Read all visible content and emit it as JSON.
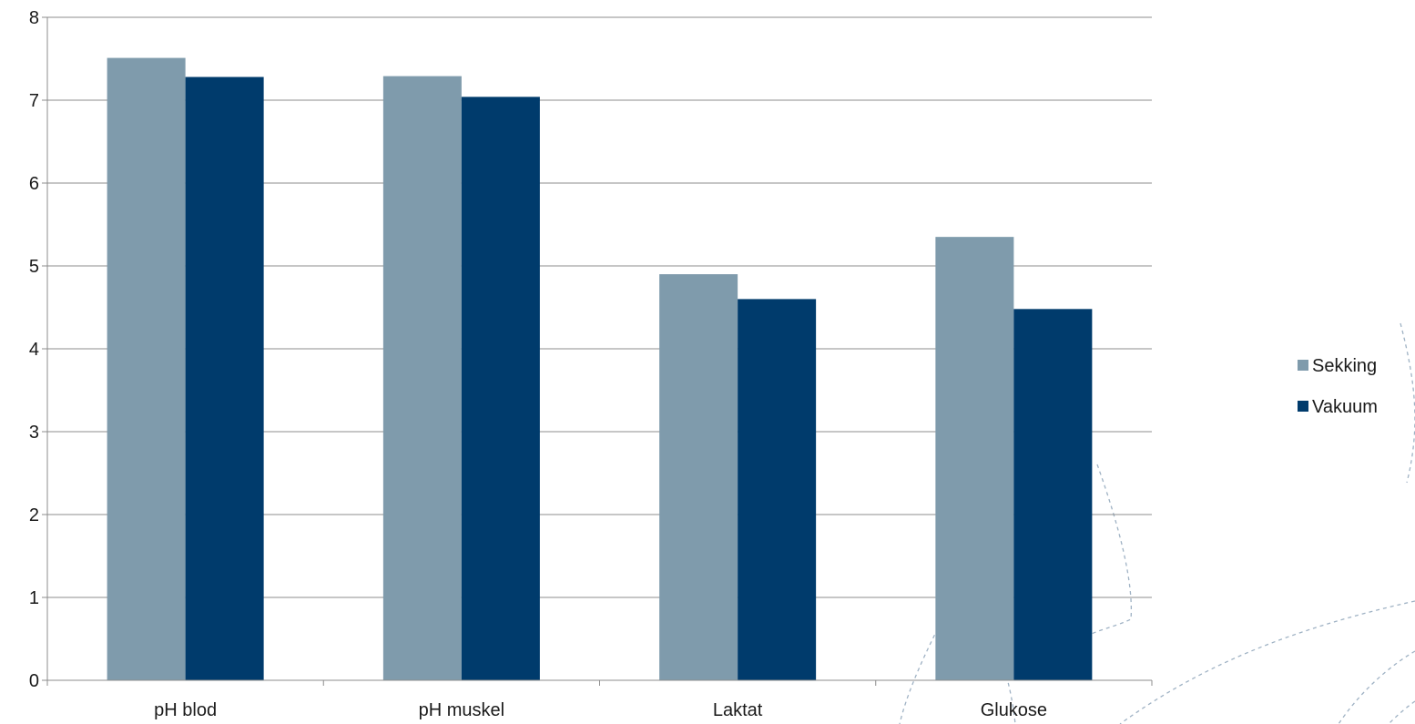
{
  "chart_data": {
    "type": "bar",
    "categories": [
      "pH blod",
      "pH muskel",
      "Laktat",
      "Glukose"
    ],
    "series": [
      {
        "name": "Sekking",
        "values": [
          7.51,
          7.29,
          4.9,
          5.35
        ],
        "color": "#7f9bac"
      },
      {
        "name": "Vakuum",
        "values": [
          7.28,
          7.04,
          4.6,
          4.48
        ],
        "color": "#003b6c"
      }
    ],
    "yticks": [
      "0",
      "1",
      "2",
      "3",
      "4",
      "5",
      "6",
      "7",
      "8"
    ],
    "ylim": [
      0,
      8
    ],
    "grid": true,
    "legend_position": "right",
    "colors": {
      "gridline": "#8c8c8c",
      "axis": "#8c8c8c",
      "decor": "#9fb2c4"
    }
  }
}
